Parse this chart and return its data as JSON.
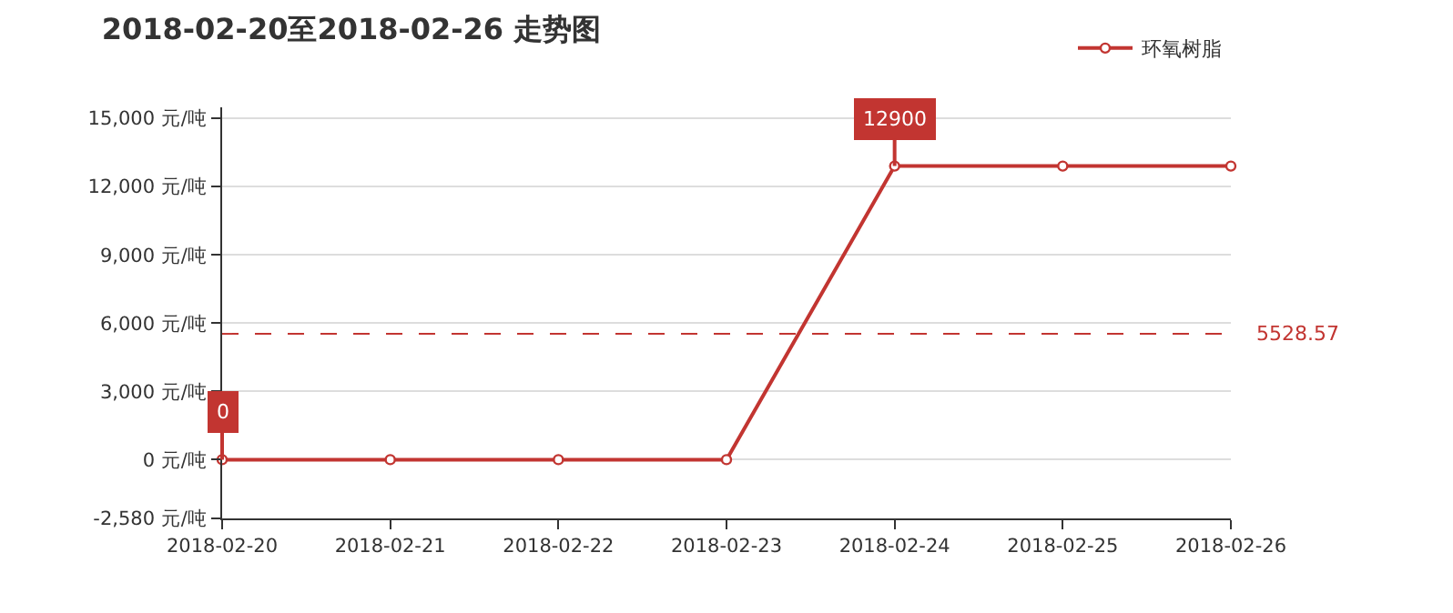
{
  "chart_data": {
    "type": "line",
    "title": "2018-02-20至2018-02-26 走势图",
    "categories": [
      "2018-02-20",
      "2018-02-21",
      "2018-02-22",
      "2018-02-23",
      "2018-02-24",
      "2018-02-25",
      "2018-02-26"
    ],
    "series": [
      {
        "name": "环氧树脂",
        "color": "#c23531",
        "values": [
          0,
          0,
          0,
          0,
          12900,
          12900,
          12900
        ]
      }
    ],
    "ylim": [
      -2580,
      15480
    ],
    "yticks": [
      {
        "value": -2580,
        "label": "-2,580 元/吨"
      },
      {
        "value": 0,
        "label": "0 元/吨"
      },
      {
        "value": 3000,
        "label": "3,000 元/吨"
      },
      {
        "value": 6000,
        "label": "6,000 元/吨"
      },
      {
        "value": 9000,
        "label": "9,000 元/吨"
      },
      {
        "value": 12000,
        "label": "12,000 元/吨"
      },
      {
        "value": 15000,
        "label": "15,000 元/吨"
      }
    ],
    "ref_lines": [
      {
        "axis": "y",
        "value": 5528.57,
        "label": "5528.57",
        "color": "#c23531",
        "line_style": "dashed"
      }
    ],
    "annotations": [
      {
        "text": "12900",
        "x": "2018-02-24",
        "y": 12900
      },
      {
        "text": "0",
        "x": "2018-02-20",
        "y": 0
      }
    ],
    "grid": "y",
    "legend": "top right",
    "marker": "circle",
    "line_style": "solid"
  }
}
